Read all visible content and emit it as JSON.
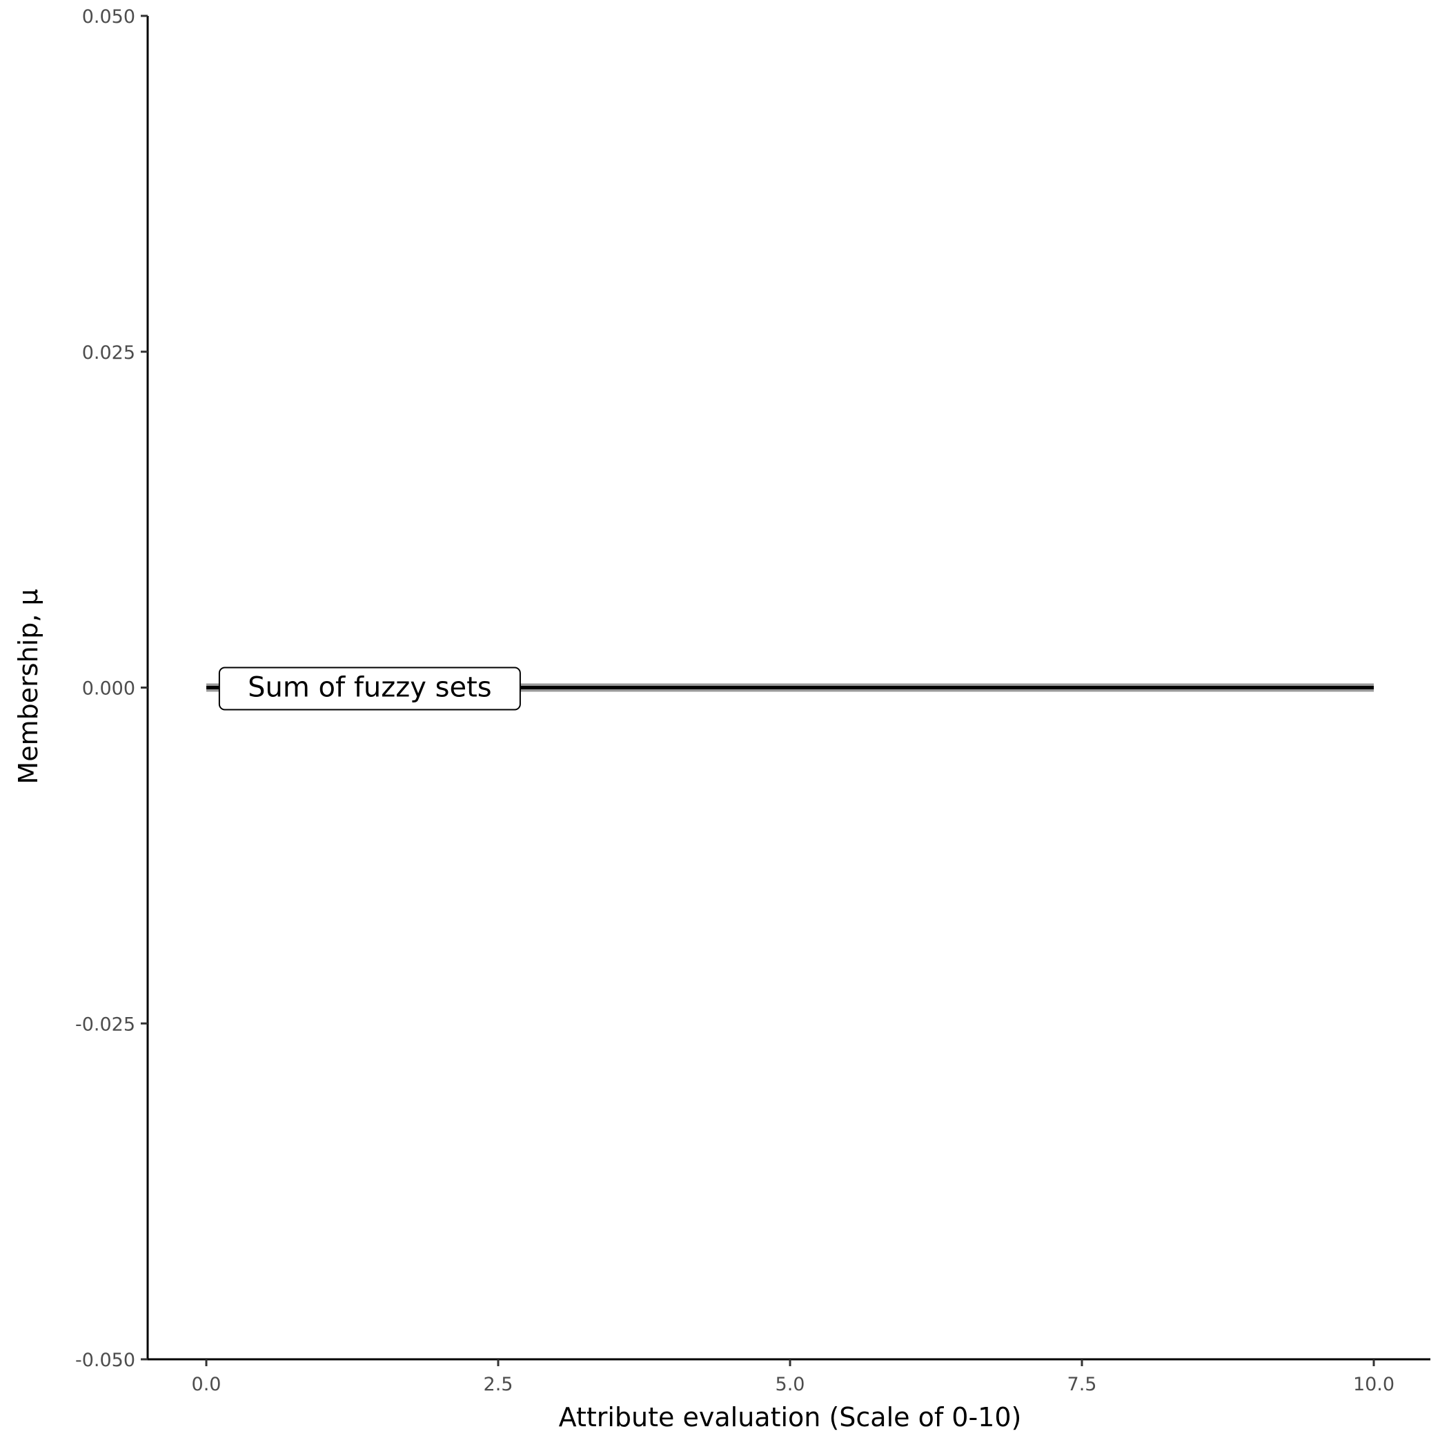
{
  "chart_data": {
    "type": "line",
    "title": "",
    "xlabel": "Attribute evaluation (Scale of 0-10)",
    "ylabel": "Membership, μ",
    "xlim": [
      -0.5,
      10.5
    ],
    "ylim": [
      -0.05,
      0.05
    ],
    "xticks": [
      "0.0",
      "2.5",
      "5.0",
      "7.5",
      "10.0"
    ],
    "xtick_values": [
      0,
      2.5,
      5,
      7.5,
      10
    ],
    "yticks": [
      "-0.050",
      "-0.025",
      "0.000",
      "0.025",
      "0.050"
    ],
    "ytick_values": [
      -0.05,
      -0.025,
      0,
      0.025,
      0.05
    ],
    "grid": false,
    "series": [
      {
        "x": [
          0,
          10
        ],
        "y": [
          0,
          0
        ],
        "color": "#000000",
        "halo_color": "#999999"
      }
    ],
    "annotations": [
      {
        "text": "Sum of fuzzy sets",
        "x": 1.4,
        "y": 0
      }
    ]
  }
}
